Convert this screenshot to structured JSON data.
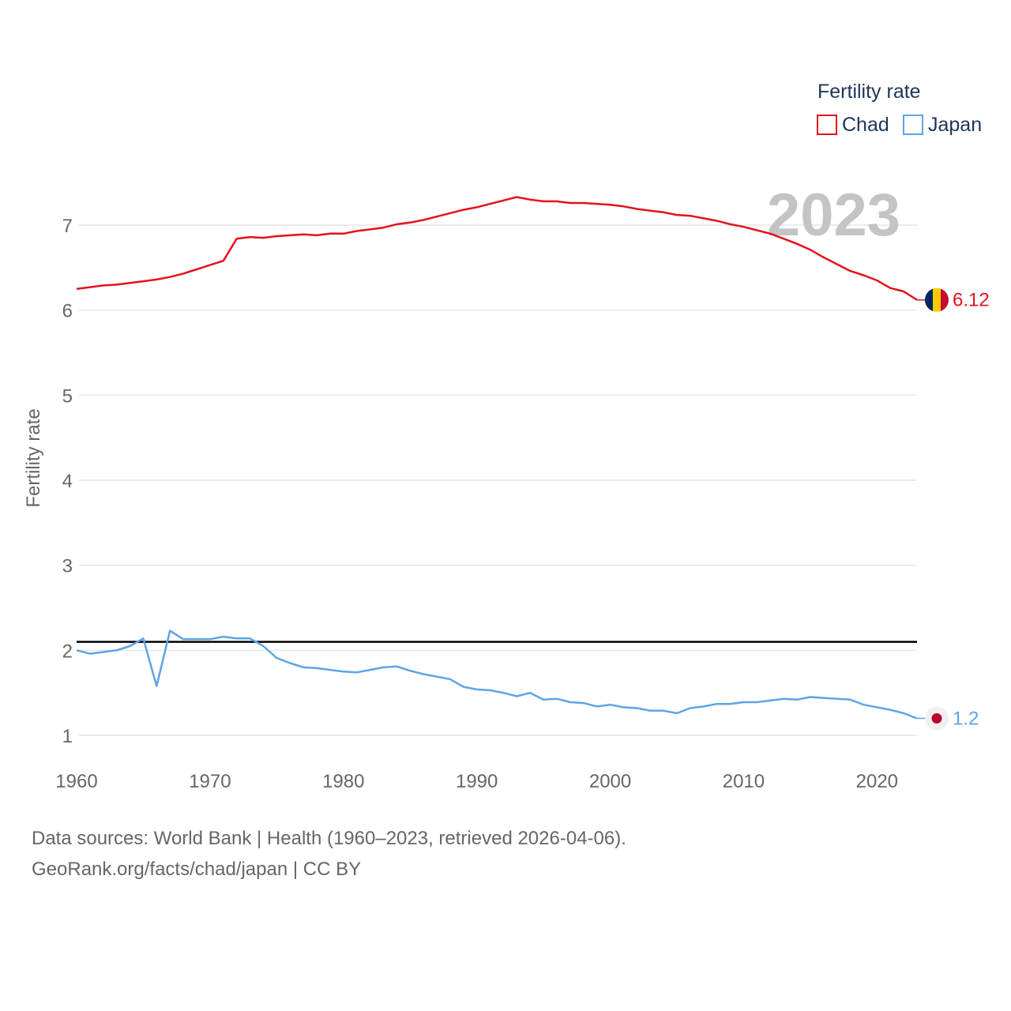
{
  "chart_data": {
    "type": "line",
    "legend_title": "Fertility rate",
    "ylabel": "Fertility rate",
    "xlabel": "",
    "xlim": [
      1960,
      2023
    ],
    "ylim": [
      1,
      7.5
    ],
    "x_ticks": [
      1960,
      1970,
      1980,
      1990,
      2000,
      2010,
      2020
    ],
    "y_ticks": [
      1,
      2,
      3,
      4,
      5,
      6,
      7
    ],
    "current_year": "2023",
    "reference_line": {
      "value": 2.1,
      "color": "#000000"
    },
    "series": [
      {
        "name": "Chad",
        "color": "#e3121c",
        "end_label": "6.12",
        "x": [
          1960,
          1961,
          1962,
          1963,
          1964,
          1965,
          1966,
          1967,
          1968,
          1969,
          1970,
          1971,
          1972,
          1973,
          1974,
          1975,
          1976,
          1977,
          1978,
          1979,
          1980,
          1981,
          1982,
          1983,
          1984,
          1985,
          1986,
          1987,
          1988,
          1989,
          1990,
          1991,
          1992,
          1993,
          1994,
          1995,
          1996,
          1997,
          1998,
          1999,
          2000,
          2001,
          2002,
          2003,
          2004,
          2005,
          2006,
          2007,
          2008,
          2009,
          2010,
          2011,
          2012,
          2013,
          2014,
          2015,
          2016,
          2017,
          2018,
          2019,
          2020,
          2021,
          2022,
          2023
        ],
        "values": [
          6.25,
          6.27,
          6.29,
          6.3,
          6.32,
          6.34,
          6.36,
          6.39,
          6.43,
          6.48,
          6.53,
          6.58,
          6.84,
          6.86,
          6.85,
          6.87,
          6.88,
          6.89,
          6.88,
          6.9,
          6.9,
          6.93,
          6.95,
          6.97,
          7.01,
          7.03,
          7.06,
          7.1,
          7.14,
          7.18,
          7.21,
          7.25,
          7.29,
          7.33,
          7.3,
          7.28,
          7.28,
          7.26,
          7.26,
          7.25,
          7.24,
          7.22,
          7.19,
          7.17,
          7.15,
          7.12,
          7.11,
          7.08,
          7.05,
          7.01,
          6.98,
          6.94,
          6.9,
          6.84,
          6.78,
          6.71,
          6.62,
          6.54,
          6.46,
          6.41,
          6.35,
          6.26,
          6.22,
          6.12
        ]
      },
      {
        "name": "Japan",
        "color": "#5ea4e4",
        "end_label": "1.2",
        "x": [
          1960,
          1961,
          1962,
          1963,
          1964,
          1965,
          1966,
          1967,
          1968,
          1969,
          1970,
          1971,
          1972,
          1973,
          1974,
          1975,
          1976,
          1977,
          1978,
          1979,
          1980,
          1981,
          1982,
          1983,
          1984,
          1985,
          1986,
          1987,
          1988,
          1989,
          1990,
          1991,
          1992,
          1993,
          1994,
          1995,
          1996,
          1997,
          1998,
          1999,
          2000,
          2001,
          2002,
          2003,
          2004,
          2005,
          2006,
          2007,
          2008,
          2009,
          2010,
          2011,
          2012,
          2013,
          2014,
          2015,
          2016,
          2017,
          2018,
          2019,
          2020,
          2021,
          2022,
          2023
        ],
        "values": [
          2.0,
          1.96,
          1.98,
          2.0,
          2.05,
          2.14,
          1.58,
          2.23,
          2.13,
          2.13,
          2.13,
          2.16,
          2.14,
          2.14,
          2.05,
          1.91,
          1.85,
          1.8,
          1.79,
          1.77,
          1.75,
          1.74,
          1.77,
          1.8,
          1.81,
          1.76,
          1.72,
          1.69,
          1.66,
          1.57,
          1.54,
          1.53,
          1.5,
          1.46,
          1.5,
          1.42,
          1.43,
          1.39,
          1.38,
          1.34,
          1.36,
          1.33,
          1.32,
          1.29,
          1.29,
          1.26,
          1.32,
          1.34,
          1.37,
          1.37,
          1.39,
          1.39,
          1.41,
          1.43,
          1.42,
          1.45,
          1.44,
          1.43,
          1.42,
          1.36,
          1.33,
          1.3,
          1.26,
          1.2
        ]
      }
    ]
  },
  "flags": {
    "chad": {
      "colors": [
        "#002664",
        "#fecb00",
        "#c60c30"
      ]
    },
    "japan": {
      "colors": [
        "#f0f0f0",
        "#bc002d"
      ]
    }
  },
  "footer": {
    "line1": "Data sources: World Bank | Health (1960–2023, retrieved 2026-04-06).",
    "line2": "GeoRank.org/facts/chad/japan | CC BY"
  }
}
